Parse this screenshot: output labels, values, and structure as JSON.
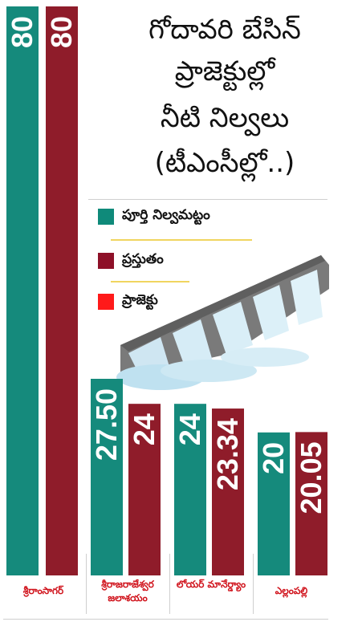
{
  "title_lines": [
    "గోదావరి బేసిన్",
    "ప్రాజెక్టుల్లో",
    "నీటి నిల్వలు",
    "(టీఎంసీల్లో..)"
  ],
  "legend": [
    {
      "label": "పూర్తి నిల్వమట్టం",
      "color": "#0f8a7a"
    },
    {
      "label": "ప్రస్తుతం",
      "color": "#8e1028"
    },
    {
      "label": "ప్రాజెక్టు",
      "color": "#ff1a1a"
    }
  ],
  "chart_data": {
    "type": "bar",
    "categories": [
      "శ్రీరాంసాగర్",
      "శ్రీరాజరాజేశ్వర జలాశయం",
      "లోయర్ మానేర్డ్యాం",
      "ఎల్లంపల్లి"
    ],
    "series": [
      {
        "name": "పూర్తి నిల్వమట్టం",
        "color": "#158a7c",
        "values": [
          80,
          27.5,
          24,
          20
        ],
        "labels": [
          "80",
          "27.50",
          "24",
          "20"
        ]
      },
      {
        "name": "ప్రస్తుతం",
        "color": "#8f1c2a",
        "values": [
          80,
          24,
          23.34,
          20.05
        ],
        "labels": [
          "80",
          "24",
          "23.34",
          "20.05"
        ]
      }
    ],
    "ylim": [
      0,
      80
    ]
  }
}
